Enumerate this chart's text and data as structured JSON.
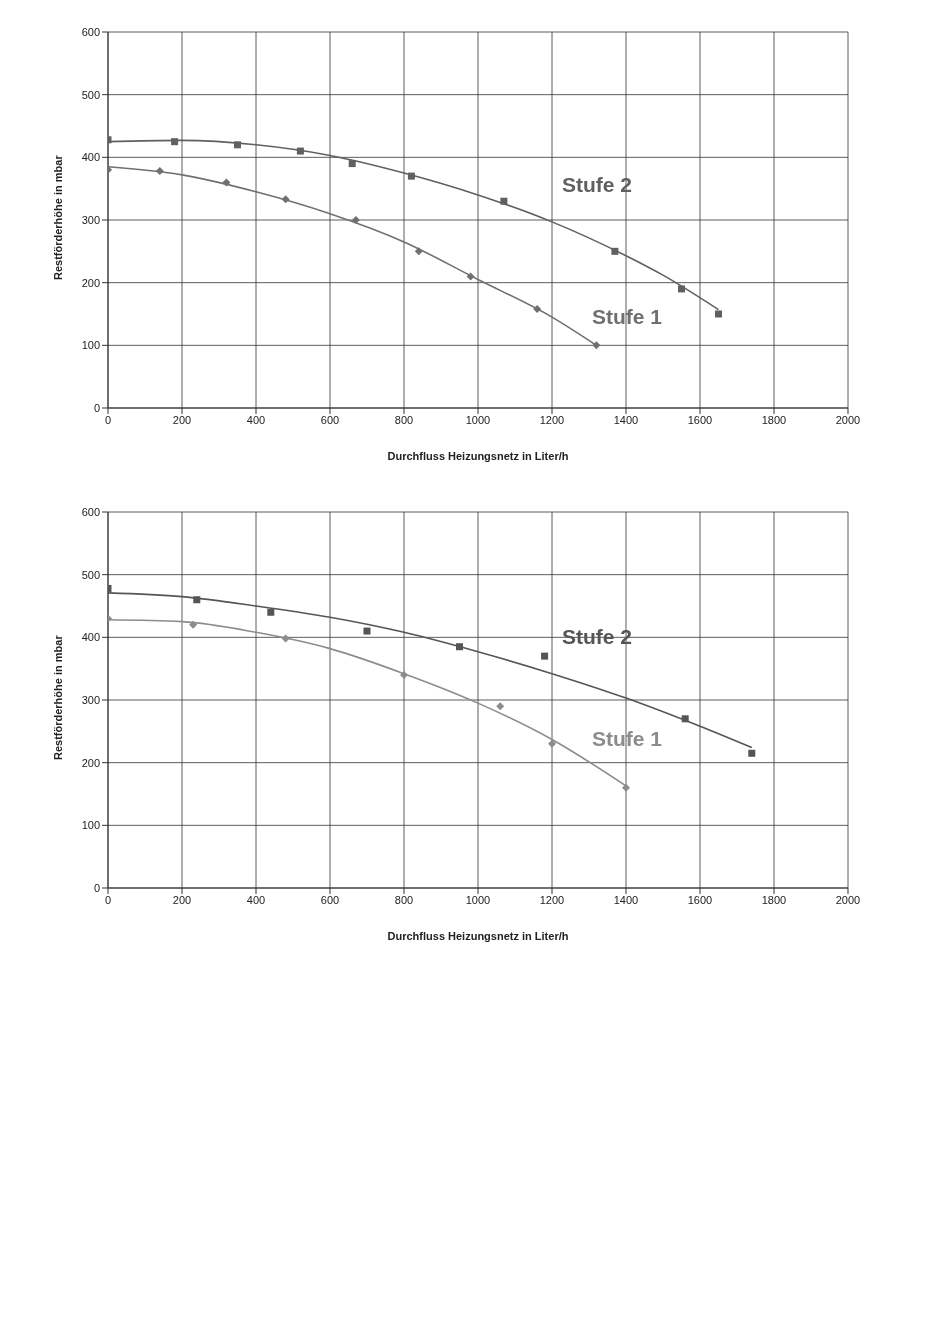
{
  "chart_data": [
    {
      "type": "scatter",
      "xlabel": "Durchfluss Heizungsnetz in Liter/h",
      "ylabel": "Restförderhöhe in mbar",
      "xlim": [
        0,
        2000
      ],
      "xticks": [
        0,
        200,
        400,
        600,
        800,
        1000,
        1200,
        1400,
        1600,
        1800,
        2000
      ],
      "ylim": [
        0,
        600
      ],
      "yticks": [
        0,
        100,
        200,
        300,
        400,
        500,
        600
      ],
      "grid": true,
      "legend": false,
      "series": [
        {
          "name": "Stufe 2",
          "marker": "square",
          "color": "#606060",
          "x": [
            0,
            180,
            350,
            520,
            660,
            820,
            1070,
            1370,
            1550,
            1650
          ],
          "values": [
            428,
            425,
            420,
            410,
            390,
            370,
            330,
            250,
            190,
            150
          ]
        },
        {
          "type": "line",
          "color": "#606060",
          "x": [
            0,
            200,
            400,
            600,
            800,
            1000,
            1200,
            1400,
            1500,
            1650
          ],
          "values": [
            425,
            427,
            420,
            403,
            375,
            340,
            297,
            243,
            212,
            157
          ]
        },
        {
          "name": "Stufe 1",
          "marker": "diamond",
          "color": "#707070",
          "x": [
            0,
            140,
            320,
            480,
            670,
            840,
            980,
            1160,
            1320
          ],
          "values": [
            380,
            378,
            360,
            333,
            300,
            250,
            210,
            158,
            100
          ]
        },
        {
          "type": "line",
          "color": "#707070",
          "x": [
            0,
            200,
            400,
            600,
            800,
            1000,
            1200,
            1320
          ],
          "values": [
            385,
            372,
            345,
            310,
            265,
            205,
            145,
            100
          ]
        }
      ]
    },
    {
      "type": "scatter",
      "xlabel": "Durchfluss Heizungsnetz in Liter/h",
      "ylabel": "Restförderhöhe in mbar",
      "xlim": [
        0,
        2000
      ],
      "xticks": [
        0,
        200,
        400,
        600,
        800,
        1000,
        1200,
        1400,
        1600,
        1800,
        2000
      ],
      "ylim": [
        0,
        600
      ],
      "yticks": [
        0,
        100,
        200,
        300,
        400,
        500,
        600
      ],
      "grid": true,
      "legend": false,
      "series": [
        {
          "name": "Stufe 2",
          "marker": "square",
          "color": "#555555",
          "x": [
            0,
            240,
            440,
            700,
            950,
            1180,
            1560,
            1740
          ],
          "values": [
            478,
            460,
            440,
            410,
            385,
            370,
            270,
            215
          ]
        },
        {
          "type": "line",
          "color": "#555555",
          "x": [
            0,
            200,
            400,
            600,
            800,
            1000,
            1200,
            1400,
            1600,
            1740
          ],
          "values": [
            471,
            465,
            450,
            432,
            408,
            377,
            342,
            303,
            258,
            224
          ]
        },
        {
          "name": "Stufe 1",
          "marker": "diamond",
          "color": "#8c8c8c",
          "x": [
            0,
            230,
            480,
            800,
            1060,
            1200,
            1400
          ],
          "values": [
            430,
            420,
            398,
            340,
            290,
            230,
            160
          ]
        },
        {
          "type": "line",
          "color": "#8c8c8c",
          "x": [
            0,
            200,
            400,
            600,
            800,
            1000,
            1200,
            1400
          ],
          "values": [
            428,
            425,
            408,
            382,
            342,
            295,
            237,
            163
          ]
        }
      ]
    }
  ]
}
